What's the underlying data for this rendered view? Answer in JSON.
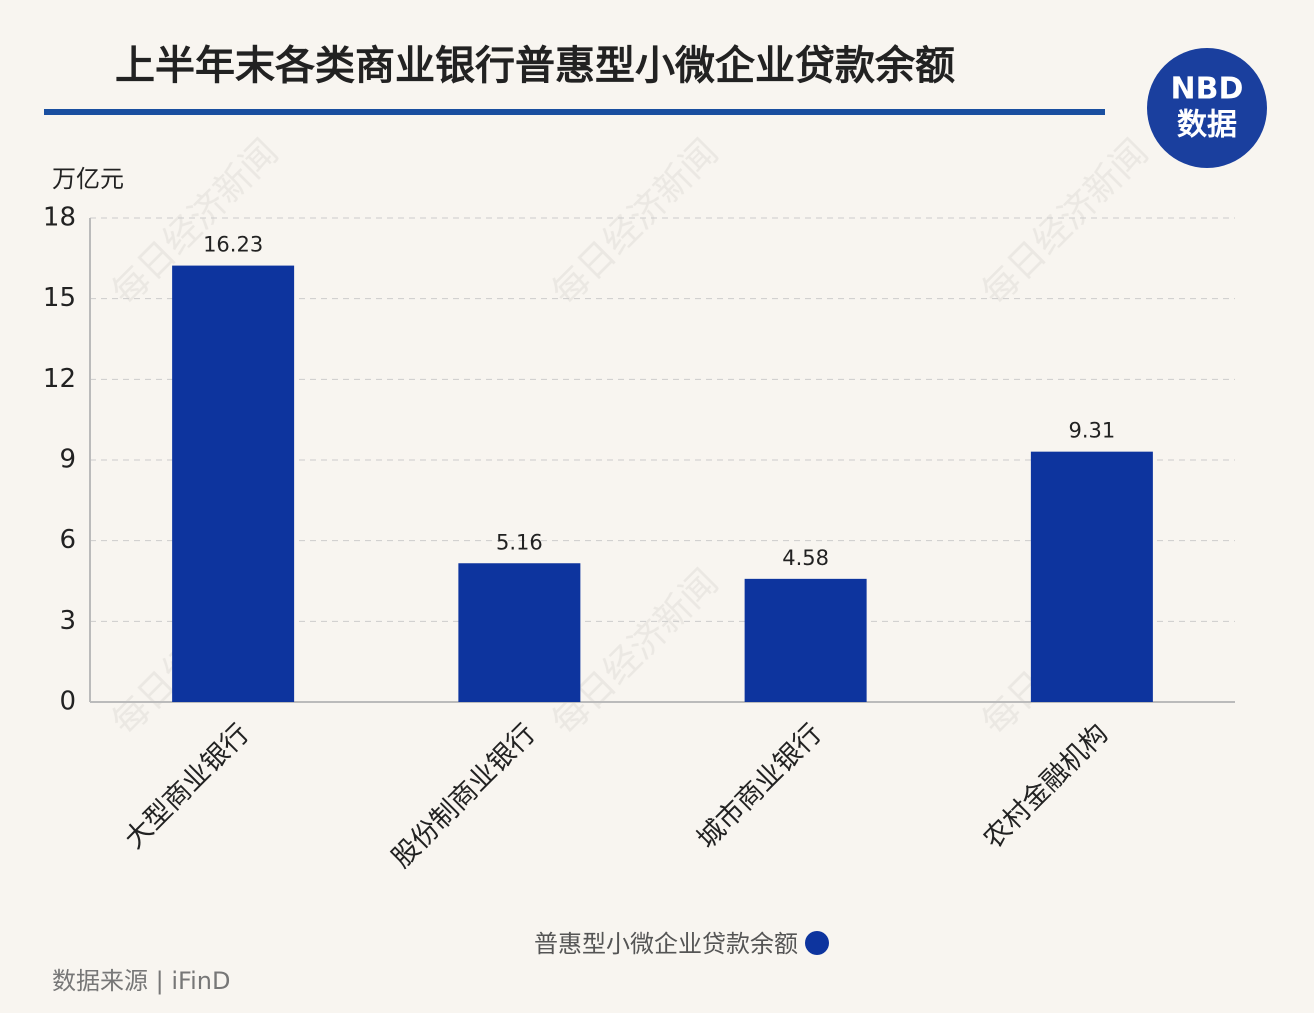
{
  "chart_data": {
    "type": "bar",
    "title": "上半年末各类商业银行普惠型小微企业贷款余额",
    "y_axis_label": "万亿元",
    "categories": [
      "大型商业银行",
      "股份制商业银行",
      "城市商业银行",
      "农村金融机构"
    ],
    "series": [
      {
        "name": "普惠型小微企业贷款余额",
        "color": "#0d349e",
        "values": [
          16.23,
          5.16,
          4.58,
          9.31
        ]
      }
    ],
    "ylim": [
      0,
      18
    ],
    "yticks": [
      0,
      3,
      6,
      9,
      12,
      15,
      18
    ],
    "grid": true,
    "source": "数据来源 | iFinD",
    "logo": {
      "top": "NBD",
      "bottom": "数据"
    },
    "watermark": "每日经济新闻"
  }
}
